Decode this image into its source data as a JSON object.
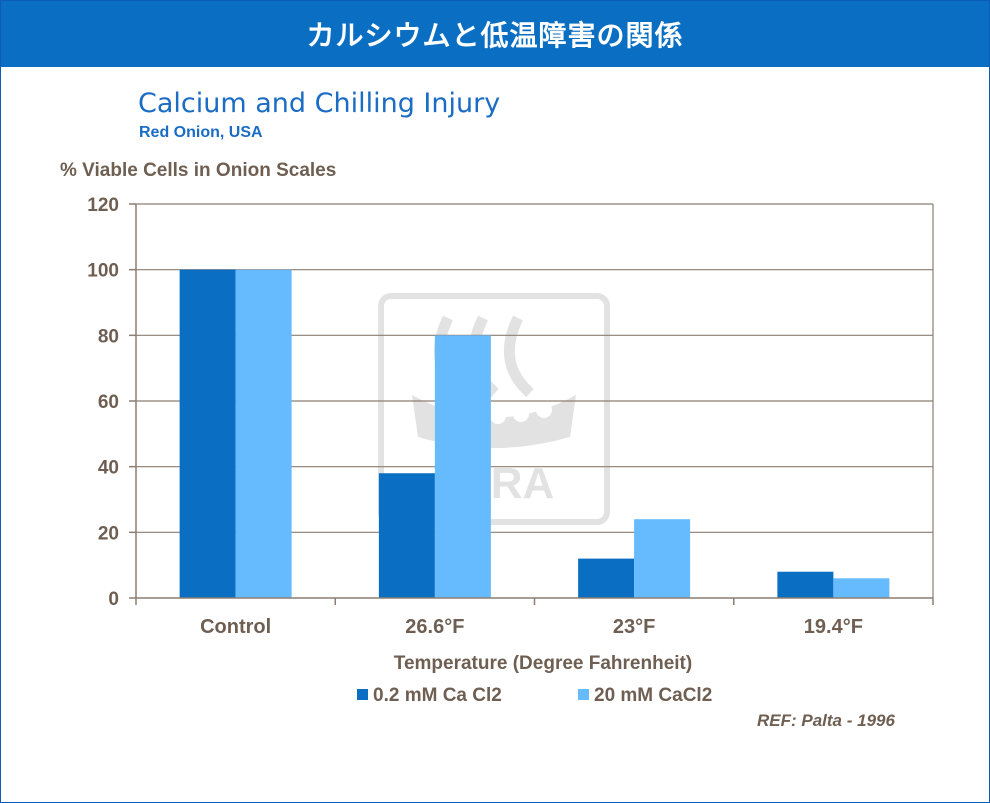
{
  "header": {
    "title": "カルシウムと低温障害の関係"
  },
  "reference": "REF: Palta - 1996",
  "watermark_text": "YARA",
  "chart_data": {
    "type": "bar",
    "title": "Calcium and Chilling Injury",
    "subtitle": "Red Onion, USA",
    "ylabel": "% Viable Cells in Onion Scales",
    "xlabel": "Temperature (Degree Fahrenheit)",
    "ylim": [
      0,
      120
    ],
    "yticks": [
      "0",
      "20",
      "40",
      "60",
      "80",
      "100",
      "120"
    ],
    "categories": [
      "Control",
      "26.6°F",
      "23°F",
      "19.4°F"
    ],
    "series": [
      {
        "name": "0.2 mM Ca Cl2",
        "color": "#0a6fc2",
        "values": [
          100,
          38,
          12,
          8
        ]
      },
      {
        "name": "20 mM CaCl2",
        "color": "#66bbff",
        "values": [
          100,
          80,
          24,
          6
        ]
      }
    ],
    "grid": true,
    "legend": "bottom"
  }
}
